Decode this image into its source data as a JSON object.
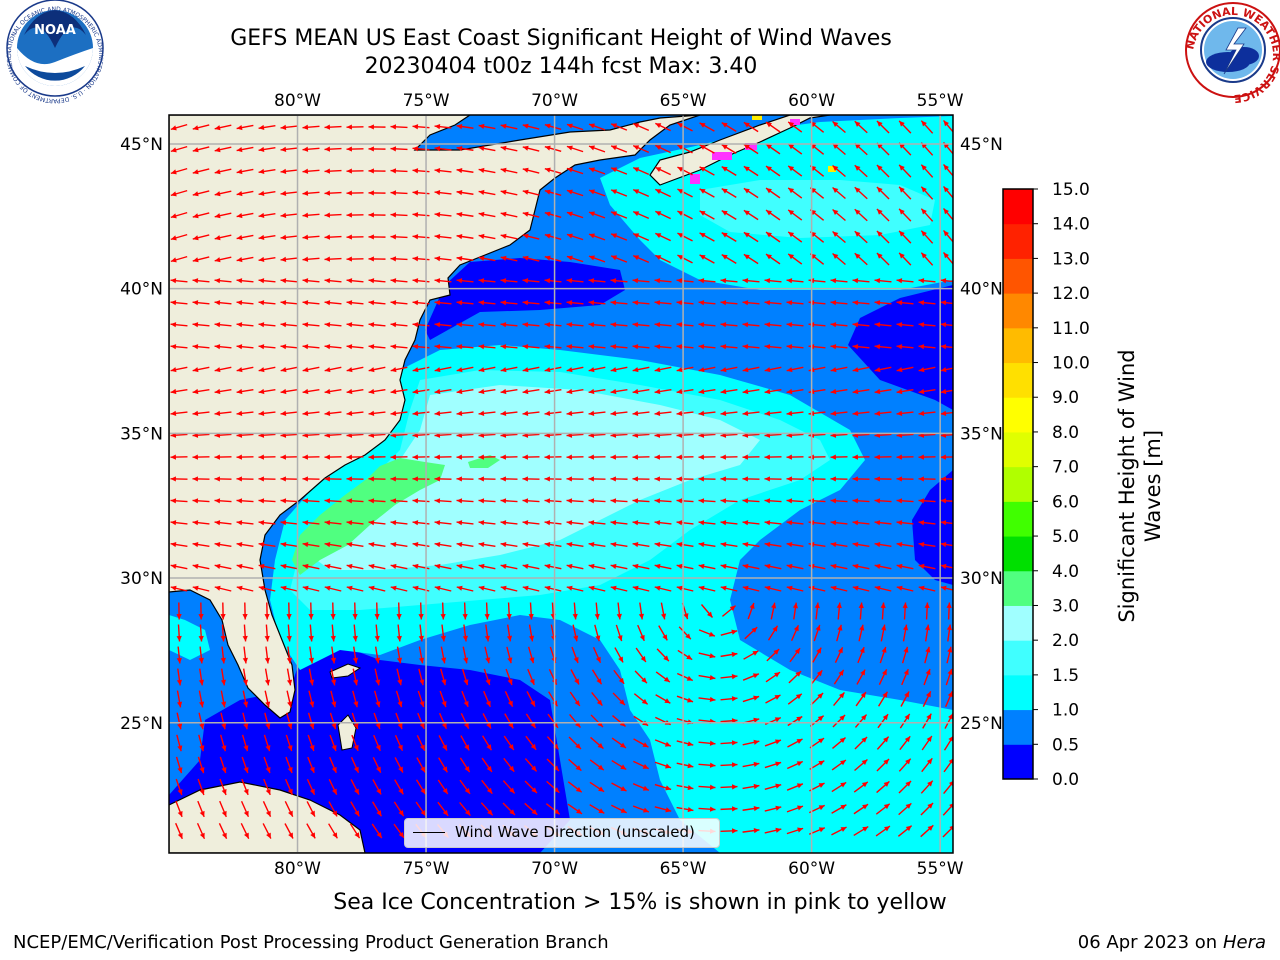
{
  "title": {
    "line1": "GEFS MEAN US East Coast Significant Height of Wind Waves",
    "line2": "20230404 t00z 144h fcst   Max: 3.40"
  },
  "logos": {
    "noaa_text": "NOAA",
    "noaa_ring_text": "NATIONAL OCEANIC AND ATMOSPHERIC ADMINISTRATION · U.S. DEPARTMENT OF COMMERCE",
    "nws_ring_text": "NATIONAL WEATHER SERVICE"
  },
  "axes": {
    "lon_ticks": [
      "80°W",
      "75°W",
      "70°W",
      "65°W",
      "60°W",
      "55°W"
    ],
    "lon_values": [
      -80,
      -75,
      -70,
      -65,
      -60,
      -55
    ],
    "lat_ticks": [
      "45°N",
      "40°N",
      "35°N",
      "30°N",
      "25°N"
    ],
    "lat_values": [
      45,
      40,
      35,
      30,
      25
    ],
    "lon_range": [
      -85,
      -54.5
    ],
    "lat_range": [
      20.5,
      46
    ]
  },
  "colorbar": {
    "label_line1": "Significant Height of Wind",
    "label_line2": "Waves [m]",
    "ticks": [
      "0.0",
      "0.5",
      "1.0",
      "1.5",
      "2.0",
      "3.0",
      "4.0",
      "5.0",
      "6.0",
      "7.0",
      "8.0",
      "9.0",
      "10.0",
      "11.0",
      "12.0",
      "13.0",
      "14.0",
      "15.0"
    ],
    "colors": [
      "#0000ff",
      "#0080ff",
      "#00ffff",
      "#40ffff",
      "#a0ffff",
      "#50ff80",
      "#00e000",
      "#40ff00",
      "#b0ff00",
      "#e0ff00",
      "#ffff00",
      "#ffe000",
      "#ffbb00",
      "#ff8800",
      "#ff5500",
      "#ff2200",
      "#ff0000"
    ]
  },
  "legend": {
    "label": "Wind Wave Direction (unscaled)",
    "arrow_color": "#ff0000"
  },
  "colors": {
    "land": "#efeedc",
    "grid": "#b0b0b0",
    "ice": "#ff33ff"
  },
  "caption": "Sea Ice Concentration > 15% is shown in pink to yellow",
  "footer": {
    "credit": "NCEP/EMC/Verification Post Processing Product Generation Branch",
    "date": "06 Apr 2023 on",
    "machine": "Hera"
  }
}
